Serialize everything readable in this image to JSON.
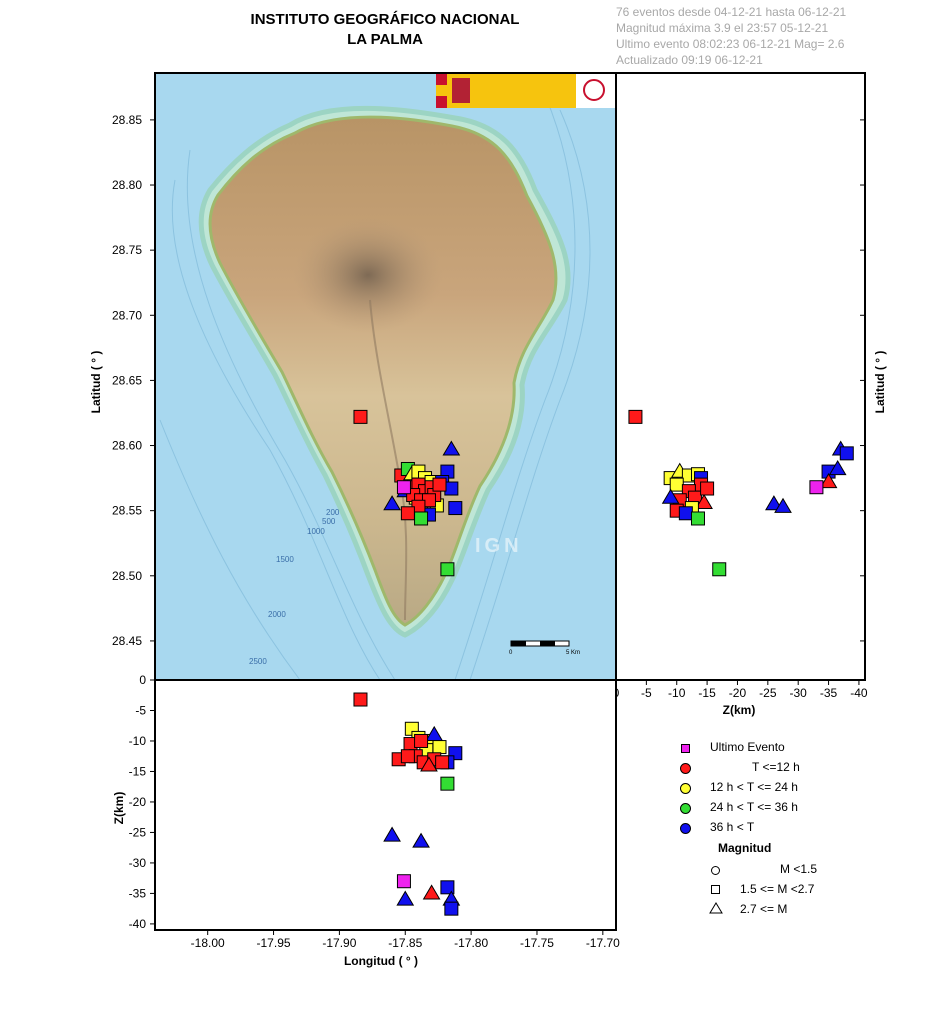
{
  "header": {
    "title_line1": "INSTITUTO GEOGRÁFICO NACIONAL",
    "title_line2": "LA PALMA",
    "info": [
      "76 eventos desde 04-12-21 hasta 06-12-21",
      "Magnitud máxima 3.9 el 23:57 05-12-21",
      "Ultimo evento   08:02:23 06-12-21   Mag= 2.6",
      "Actualizado   09:19  06-12-21"
    ]
  },
  "map": {
    "watermark": "IGN",
    "scale_bar_start": "0",
    "scale_bar_end": "5 Km",
    "bathymetry_labels": [
      "200",
      "500",
      "1000",
      "1500",
      "2000",
      "2500"
    ]
  },
  "chart_data": [
    {
      "type": "scatter",
      "panel": "map",
      "xlabel": "",
      "ylabel": "Latitud ( ° )",
      "xlim": [
        -18.04,
        -17.69
      ],
      "ylim": [
        28.42,
        28.886
      ],
      "yticks": [
        "28.45",
        "28.50",
        "28.55",
        "28.60",
        "28.65",
        "28.70",
        "28.75",
        "28.80",
        "28.85"
      ],
      "points": [
        {
          "x": -17.884,
          "y": 28.622,
          "shape": "square",
          "color": "red"
        },
        {
          "x": -17.818,
          "y": 28.505,
          "shape": "square",
          "color": "green"
        },
        {
          "x": -17.815,
          "y": 28.597,
          "shape": "triangle",
          "color": "blue"
        },
        {
          "x": -17.86,
          "y": 28.555,
          "shape": "triangle",
          "color": "blue"
        },
        {
          "x": -17.853,
          "y": 28.577,
          "shape": "square",
          "color": "red"
        },
        {
          "x": -17.848,
          "y": 28.582,
          "shape": "square",
          "color": "green"
        },
        {
          "x": -17.845,
          "y": 28.578,
          "shape": "triangle",
          "color": "yellow"
        },
        {
          "x": -17.84,
          "y": 28.58,
          "shape": "square",
          "color": "yellow"
        },
        {
          "x": -17.835,
          "y": 28.575,
          "shape": "square",
          "color": "yellow"
        },
        {
          "x": -17.83,
          "y": 28.572,
          "shape": "square",
          "color": "yellow"
        },
        {
          "x": -17.842,
          "y": 28.56,
          "shape": "square",
          "color": "yellow"
        },
        {
          "x": -17.826,
          "y": 28.554,
          "shape": "square",
          "color": "yellow"
        },
        {
          "x": -17.838,
          "y": 28.552,
          "shape": "square",
          "color": "yellow"
        },
        {
          "x": -17.818,
          "y": 28.58,
          "shape": "square",
          "color": "blue"
        },
        {
          "x": -17.822,
          "y": 28.572,
          "shape": "square",
          "color": "blue"
        },
        {
          "x": -17.815,
          "y": 28.567,
          "shape": "square",
          "color": "blue"
        },
        {
          "x": -17.812,
          "y": 28.552,
          "shape": "square",
          "color": "blue"
        },
        {
          "x": -17.832,
          "y": 28.547,
          "shape": "square",
          "color": "blue"
        },
        {
          "x": -17.85,
          "y": 28.565,
          "shape": "triangle",
          "color": "blue"
        },
        {
          "x": -17.846,
          "y": 28.568,
          "shape": "square",
          "color": "red"
        },
        {
          "x": -17.84,
          "y": 28.57,
          "shape": "square",
          "color": "red"
        },
        {
          "x": -17.835,
          "y": 28.565,
          "shape": "square",
          "color": "red"
        },
        {
          "x": -17.83,
          "y": 28.568,
          "shape": "square",
          "color": "red"
        },
        {
          "x": -17.828,
          "y": 28.562,
          "shape": "square",
          "color": "red"
        },
        {
          "x": -17.844,
          "y": 28.562,
          "shape": "square",
          "color": "red"
        },
        {
          "x": -17.838,
          "y": 28.558,
          "shape": "square",
          "color": "red"
        },
        {
          "x": -17.832,
          "y": 28.558,
          "shape": "square",
          "color": "red"
        },
        {
          "x": -17.84,
          "y": 28.553,
          "shape": "square",
          "color": "red"
        },
        {
          "x": -17.848,
          "y": 28.548,
          "shape": "square",
          "color": "red"
        },
        {
          "x": -17.824,
          "y": 28.57,
          "shape": "square",
          "color": "red"
        },
        {
          "x": -17.838,
          "y": 28.544,
          "shape": "square",
          "color": "green"
        },
        {
          "x": -17.851,
          "y": 28.568,
          "shape": "square",
          "color": "magenta"
        }
      ]
    },
    {
      "type": "scatter",
      "panel": "depth-vs-latitude",
      "xlabel": "Z(km)",
      "ylabel": "Latitud ( ° )",
      "xlim": [
        0,
        -41
      ],
      "ylim": [
        28.42,
        28.886
      ],
      "xticks": [
        "0",
        "-5",
        "-10",
        "-15",
        "-20",
        "-25",
        "-30",
        "-35",
        "-40"
      ],
      "points": [
        {
          "x": -3.2,
          "y": 28.622,
          "shape": "square",
          "color": "red"
        },
        {
          "x": -17.0,
          "y": 28.505,
          "shape": "square",
          "color": "green"
        },
        {
          "x": -37.0,
          "y": 28.597,
          "shape": "triangle",
          "color": "blue"
        },
        {
          "x": -38.0,
          "y": 28.594,
          "shape": "square",
          "color": "blue"
        },
        {
          "x": -35.0,
          "y": 28.58,
          "shape": "square",
          "color": "blue"
        },
        {
          "x": -36.5,
          "y": 28.582,
          "shape": "triangle",
          "color": "blue"
        },
        {
          "x": -35.0,
          "y": 28.572,
          "shape": "triangle",
          "color": "red"
        },
        {
          "x": -33.0,
          "y": 28.568,
          "shape": "square",
          "color": "magenta"
        },
        {
          "x": -26.0,
          "y": 28.555,
          "shape": "triangle",
          "color": "blue"
        },
        {
          "x": -27.5,
          "y": 28.553,
          "shape": "triangle",
          "color": "blue"
        },
        {
          "x": -9.0,
          "y": 28.575,
          "shape": "square",
          "color": "yellow"
        },
        {
          "x": -10.5,
          "y": 28.58,
          "shape": "triangle",
          "color": "yellow"
        },
        {
          "x": -12.0,
          "y": 28.577,
          "shape": "square",
          "color": "yellow"
        },
        {
          "x": -13.5,
          "y": 28.578,
          "shape": "square",
          "color": "yellow"
        },
        {
          "x": -10.0,
          "y": 28.57,
          "shape": "square",
          "color": "yellow"
        },
        {
          "x": -14.0,
          "y": 28.575,
          "shape": "square",
          "color": "blue"
        },
        {
          "x": -14.0,
          "y": 28.57,
          "shape": "square",
          "color": "red"
        },
        {
          "x": -12.0,
          "y": 28.565,
          "shape": "square",
          "color": "red"
        },
        {
          "x": -13.0,
          "y": 28.56,
          "shape": "square",
          "color": "red"
        },
        {
          "x": -10.5,
          "y": 28.558,
          "shape": "square",
          "color": "red"
        },
        {
          "x": -14.5,
          "y": 28.556,
          "shape": "triangle",
          "color": "red"
        },
        {
          "x": -9.0,
          "y": 28.56,
          "shape": "triangle",
          "color": "blue"
        },
        {
          "x": -10.0,
          "y": 28.55,
          "shape": "square",
          "color": "red"
        },
        {
          "x": -12.5,
          "y": 28.552,
          "shape": "square",
          "color": "yellow"
        },
        {
          "x": -11.5,
          "y": 28.548,
          "shape": "square",
          "color": "blue"
        },
        {
          "x": -13.5,
          "y": 28.544,
          "shape": "square",
          "color": "green"
        },
        {
          "x": -15.0,
          "y": 28.567,
          "shape": "square",
          "color": "red"
        }
      ]
    },
    {
      "type": "scatter",
      "panel": "longitude-vs-depth",
      "xlabel": "Longitud ( ° )",
      "ylabel": "Z(km)",
      "xlim": [
        -18.04,
        -17.69
      ],
      "ylim": [
        -41,
        0
      ],
      "xticks": [
        "-18.00",
        "-17.95",
        "-17.90",
        "-17.85",
        "-17.80",
        "-17.75",
        "-17.70"
      ],
      "yticks": [
        "0",
        "-5",
        "-10",
        "-15",
        "-20",
        "-25",
        "-30",
        "-35",
        "-40"
      ],
      "points": [
        {
          "x": -17.884,
          "y": -3.2,
          "shape": "square",
          "color": "red"
        },
        {
          "x": -17.818,
          "y": -17.0,
          "shape": "square",
          "color": "green"
        },
        {
          "x": -17.86,
          "y": -25.5,
          "shape": "triangle",
          "color": "blue"
        },
        {
          "x": -17.838,
          "y": -26.5,
          "shape": "triangle",
          "color": "blue"
        },
        {
          "x": -17.851,
          "y": -33.0,
          "shape": "square",
          "color": "magenta"
        },
        {
          "x": -17.83,
          "y": -35.0,
          "shape": "triangle",
          "color": "red"
        },
        {
          "x": -17.818,
          "y": -34.0,
          "shape": "square",
          "color": "blue"
        },
        {
          "x": -17.815,
          "y": -36.0,
          "shape": "triangle",
          "color": "blue"
        },
        {
          "x": -17.815,
          "y": -37.5,
          "shape": "square",
          "color": "blue"
        },
        {
          "x": -17.85,
          "y": -36.0,
          "shape": "triangle",
          "color": "blue"
        },
        {
          "x": -17.845,
          "y": -8.0,
          "shape": "square",
          "color": "yellow"
        },
        {
          "x": -17.84,
          "y": -9.5,
          "shape": "square",
          "color": "yellow"
        },
        {
          "x": -17.83,
          "y": -10.0,
          "shape": "square",
          "color": "yellow"
        },
        {
          "x": -17.824,
          "y": -11.0,
          "shape": "square",
          "color": "yellow"
        },
        {
          "x": -17.834,
          "y": -11.5,
          "shape": "square",
          "color": "yellow"
        },
        {
          "x": -17.828,
          "y": -9.0,
          "shape": "triangle",
          "color": "blue"
        },
        {
          "x": -17.812,
          "y": -12.0,
          "shape": "square",
          "color": "blue"
        },
        {
          "x": -17.818,
          "y": -13.5,
          "shape": "square",
          "color": "blue"
        },
        {
          "x": -17.855,
          "y": -13.0,
          "shape": "square",
          "color": "red"
        },
        {
          "x": -17.846,
          "y": -10.5,
          "shape": "square",
          "color": "red"
        },
        {
          "x": -17.838,
          "y": -10.0,
          "shape": "square",
          "color": "red"
        },
        {
          "x": -17.842,
          "y": -12.5,
          "shape": "square",
          "color": "red"
        },
        {
          "x": -17.836,
          "y": -13.5,
          "shape": "square",
          "color": "red"
        },
        {
          "x": -17.828,
          "y": -13.0,
          "shape": "square",
          "color": "red"
        },
        {
          "x": -17.832,
          "y": -14.0,
          "shape": "triangle",
          "color": "red"
        },
        {
          "x": -17.822,
          "y": -13.5,
          "shape": "square",
          "color": "red"
        },
        {
          "x": -17.848,
          "y": -12.5,
          "shape": "square",
          "color": "red"
        }
      ]
    }
  ],
  "legend": {
    "last_event": "Ultimo Evento",
    "t12": "T <=12 h",
    "t24": "12 h  < T <= 24 h",
    "t36": "24 h  < T <= 36 h",
    "tmore": "36 h <  T",
    "magnitude_title": "Magnitud",
    "m_small": "M <1.5",
    "m_mid": "1.5 <= M <2.7",
    "m_large": "2.7 <= M"
  },
  "colors": {
    "red": "#ff1a1a",
    "yellow": "#ffff33",
    "green": "#33dd33",
    "blue": "#1010ee",
    "magenta": "#ee22ee"
  }
}
